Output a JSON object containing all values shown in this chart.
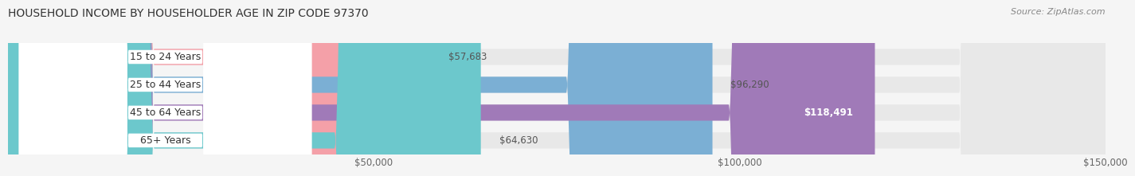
{
  "title": "HOUSEHOLD INCOME BY HOUSEHOLDER AGE IN ZIP CODE 97370",
  "source": "Source: ZipAtlas.com",
  "categories": [
    "15 to 24 Years",
    "25 to 44 Years",
    "45 to 64 Years",
    "65+ Years"
  ],
  "values": [
    57683,
    96290,
    118491,
    64630
  ],
  "bar_colors": [
    "#f4a0a8",
    "#7bafd4",
    "#a07ab8",
    "#6cc8cc"
  ],
  "background_color": "#f5f5f5",
  "bar_bg_color": "#e8e8e8",
  "value_labels": [
    "$57,683",
    "$96,290",
    "$118,491",
    "$64,630"
  ],
  "xlim": [
    0,
    150000
  ],
  "xticks": [
    50000,
    100000,
    150000
  ],
  "xtick_labels": [
    "$50,000",
    "$100,000",
    "$150,000"
  ],
  "title_fontsize": 10,
  "source_fontsize": 8,
  "bar_label_fontsize": 9,
  "value_fontsize": 8.5
}
